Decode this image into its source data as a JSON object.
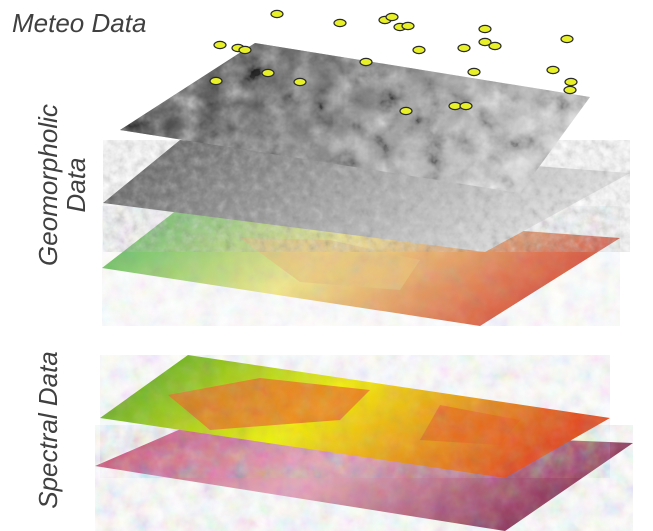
{
  "labels": {
    "meteo": "Meteo Data",
    "geomorphic_line1": "Geomorpholic",
    "geomorphic_line2": "Data",
    "spectral": "Spectral Data"
  },
  "layers": [
    {
      "id": "meteo-grayscale",
      "colors": [
        "#1c1c1c",
        "#6f6f6f",
        "#d8d8d8"
      ]
    },
    {
      "id": "relief-shaded",
      "colors": [
        "#4a4a4a",
        "#9a9a9a",
        "#e6e6e6"
      ]
    },
    {
      "id": "slope-map",
      "colors": [
        "#3fb45a",
        "#f2e88a",
        "#d9503a"
      ]
    },
    {
      "id": "ndvi-map",
      "colors": [
        "#3a9b2b",
        "#f4f000",
        "#e24a1a"
      ]
    },
    {
      "id": "false-color",
      "colors": [
        "#c23a6a",
        "#e7a6b8",
        "#8a2c50"
      ]
    }
  ],
  "station_color": "#e8f028"
}
